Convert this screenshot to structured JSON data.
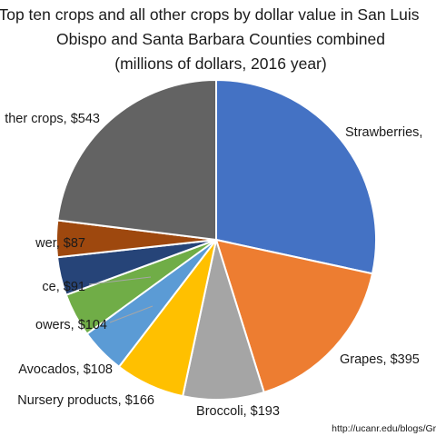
{
  "chart_data": {
    "type": "pie",
    "title_lines": [
      "Top ten crops and all other crops by dollar value in San Luis",
      "Obispo and Santa Barbara Counties combined",
      "(millions of dollars, 2016 year)"
    ],
    "slices": [
      {
        "label": "Strawberries,",
        "value": 669,
        "value_label": "",
        "color": "#4472C4"
      },
      {
        "label": "Grapes,",
        "value": 395,
        "value_label": "$395",
        "color": "#ED7D31"
      },
      {
        "label": "Broccoli,",
        "value": 193,
        "value_label": "$193",
        "color": "#A5A5A5"
      },
      {
        "label": "Nursery products,",
        "value": 166,
        "value_label": "$166",
        "color": "#FFC000"
      },
      {
        "label": "Avocados,",
        "value": 108,
        "value_label": "$108",
        "color": "#5B9BD5"
      },
      {
        "label": "owers,",
        "value": 104,
        "value_label": "$104",
        "color": "#70AD47"
      },
      {
        "label": "ce,",
        "value": 91,
        "value_label": "$91",
        "color": "#264478"
      },
      {
        "label": "wer,",
        "value": 87,
        "value_label": "$87",
        "color": "#9E480E"
      },
      {
        "label": "ther crops,",
        "value": 543,
        "value_label": "$543",
        "color": "#636363"
      }
    ]
  },
  "source": "http://ucanr.edu/blogs/Gra"
}
